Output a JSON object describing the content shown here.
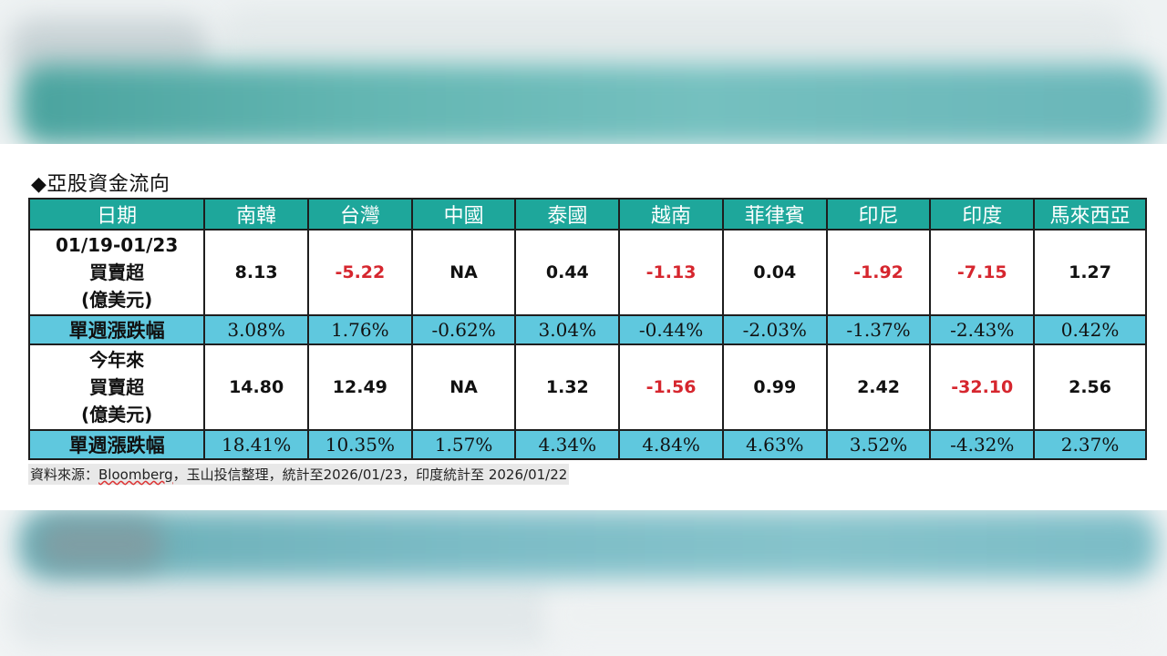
{
  "title": "◆亞股資金流向",
  "columns": [
    "日期",
    "南韓",
    "台灣",
    "中國",
    "泰國",
    "越南",
    "菲律賓",
    "印尼",
    "印度",
    "馬來西亞"
  ],
  "rows": [
    {
      "type": "values",
      "label_lines": [
        "01/19-01/23",
        "買賣超",
        "(億美元)"
      ],
      "cells": [
        {
          "v": "8.13",
          "neg": false
        },
        {
          "v": "-5.22",
          "neg": true
        },
        {
          "v": "NA",
          "neg": false
        },
        {
          "v": "0.44",
          "neg": false
        },
        {
          "v": "-1.13",
          "neg": true
        },
        {
          "v": "0.04",
          "neg": false
        },
        {
          "v": "-1.92",
          "neg": true
        },
        {
          "v": "-7.15",
          "neg": true
        },
        {
          "v": "1.27",
          "neg": false
        }
      ]
    },
    {
      "type": "pct",
      "label": "單週漲跌幅",
      "cells": [
        "3.08%",
        "1.76%",
        "-0.62%",
        "3.04%",
        "-0.44%",
        "-2.03%",
        "-1.37%",
        "-2.43%",
        "0.42%"
      ]
    },
    {
      "type": "values",
      "label_lines": [
        "今年來",
        "買賣超",
        "(億美元)"
      ],
      "cells": [
        {
          "v": "14.80",
          "neg": false
        },
        {
          "v": "12.49",
          "neg": false
        },
        {
          "v": "NA",
          "neg": false
        },
        {
          "v": "1.32",
          "neg": false
        },
        {
          "v": "-1.56",
          "neg": true
        },
        {
          "v": "0.99",
          "neg": false
        },
        {
          "v": "2.42",
          "neg": false
        },
        {
          "v": "-32.10",
          "neg": true
        },
        {
          "v": "2.56",
          "neg": false
        }
      ]
    },
    {
      "type": "pct",
      "label": "單週漲跌幅",
      "cells": [
        "18.41%",
        "10.35%",
        "1.57%",
        "4.34%",
        "4.84%",
        "4.63%",
        "3.52%",
        "-4.32%",
        "2.37%"
      ]
    }
  ],
  "source": {
    "prefix": "資料來源：",
    "name": "Bloomberg",
    "suffix": "，玉山投信整理，統計至2026/01/23，印度統計至 2026/01/22"
  },
  "colors": {
    "header": "#1ea79b",
    "pct_row": "#5fc8de",
    "negative": "#d6262e"
  }
}
